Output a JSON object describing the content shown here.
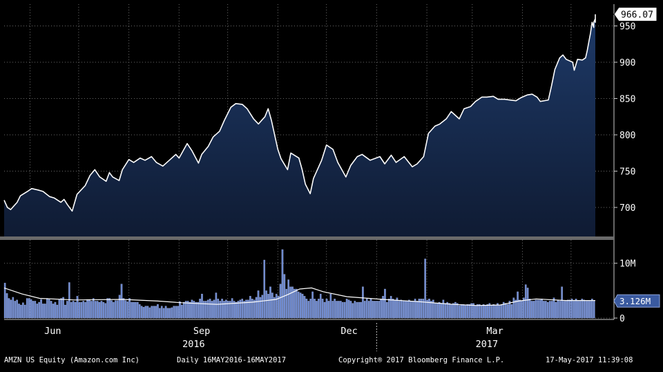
{
  "chart_data": [
    {
      "type": "area",
      "name": "price",
      "ylim": [
        660,
        980
      ],
      "y_ticks": [
        700,
        750,
        800,
        850,
        900,
        950
      ],
      "last_value_label": "966.07",
      "points": [
        [
          "2016-05-16",
          710
        ],
        [
          "2016-05-18",
          700
        ],
        [
          "2016-05-20",
          697
        ],
        [
          "2016-05-24",
          707
        ],
        [
          "2016-05-26",
          716
        ],
        [
          "2016-05-31",
          723
        ],
        [
          "2016-06-02",
          726
        ],
        [
          "2016-06-06",
          724
        ],
        [
          "2016-06-09",
          722
        ],
        [
          "2016-06-13",
          715
        ],
        [
          "2016-06-16",
          713
        ],
        [
          "2016-06-20",
          707
        ],
        [
          "2016-06-22",
          711
        ],
        [
          "2016-06-24",
          704
        ],
        [
          "2016-06-27",
          695
        ],
        [
          "2016-06-30",
          718
        ],
        [
          "2016-07-05",
          730
        ],
        [
          "2016-07-08",
          744
        ],
        [
          "2016-07-11",
          752
        ],
        [
          "2016-07-14",
          742
        ],
        [
          "2016-07-18",
          736
        ],
        [
          "2016-07-20",
          748
        ],
        [
          "2016-07-22",
          742
        ],
        [
          "2016-07-26",
          737
        ],
        [
          "2016-07-28",
          752
        ],
        [
          "2016-08-01",
          766
        ],
        [
          "2016-08-04",
          762
        ],
        [
          "2016-08-08",
          768
        ],
        [
          "2016-08-11",
          765
        ],
        [
          "2016-08-15",
          770
        ],
        [
          "2016-08-18",
          762
        ],
        [
          "2016-08-22",
          757
        ],
        [
          "2016-08-25",
          763
        ],
        [
          "2016-08-30",
          773
        ],
        [
          "2016-09-01",
          768
        ],
        [
          "2016-09-06",
          788
        ],
        [
          "2016-09-09",
          778
        ],
        [
          "2016-09-13",
          761
        ],
        [
          "2016-09-15",
          773
        ],
        [
          "2016-09-19",
          784
        ],
        [
          "2016-09-22",
          797
        ],
        [
          "2016-09-26",
          805
        ],
        [
          "2016-09-29",
          820
        ],
        [
          "2016-10-03",
          838
        ],
        [
          "2016-10-06",
          843
        ],
        [
          "2016-10-10",
          842
        ],
        [
          "2016-10-13",
          836
        ],
        [
          "2016-10-17",
          822
        ],
        [
          "2016-10-20",
          815
        ],
        [
          "2016-10-24",
          825
        ],
        [
          "2016-10-26",
          836
        ],
        [
          "2016-10-28",
          820
        ],
        [
          "2016-11-01",
          780
        ],
        [
          "2016-11-03",
          767
        ],
        [
          "2016-11-07",
          752
        ],
        [
          "2016-11-09",
          775
        ],
        [
          "2016-11-14",
          768
        ],
        [
          "2016-11-16",
          752
        ],
        [
          "2016-11-18",
          732
        ],
        [
          "2016-11-21",
          719
        ],
        [
          "2016-11-23",
          740
        ],
        [
          "2016-11-28",
          765
        ],
        [
          "2016-12-01",
          786
        ],
        [
          "2016-12-05",
          780
        ],
        [
          "2016-12-08",
          762
        ],
        [
          "2016-12-13",
          742
        ],
        [
          "2016-12-16",
          758
        ],
        [
          "2016-12-20",
          770
        ],
        [
          "2016-12-23",
          773
        ],
        [
          "2016-12-28",
          765
        ],
        [
          "2017-01-03",
          770
        ],
        [
          "2017-01-06",
          760
        ],
        [
          "2017-01-10",
          772
        ],
        [
          "2017-01-13",
          762
        ],
        [
          "2017-01-18",
          770
        ],
        [
          "2017-01-23",
          756
        ],
        [
          "2017-01-26",
          760
        ],
        [
          "2017-01-30",
          770
        ],
        [
          "2017-02-02",
          802
        ],
        [
          "2017-02-06",
          812
        ],
        [
          "2017-02-09",
          815
        ],
        [
          "2017-02-13",
          822
        ],
        [
          "2017-02-16",
          832
        ],
        [
          "2017-02-21",
          822
        ],
        [
          "2017-02-24",
          836
        ],
        [
          "2017-02-28",
          839
        ],
        [
          "2017-03-03",
          846
        ],
        [
          "2017-03-07",
          852
        ],
        [
          "2017-03-10",
          852
        ],
        [
          "2017-03-14",
          853
        ],
        [
          "2017-03-17",
          849
        ],
        [
          "2017-03-21",
          849
        ],
        [
          "2017-03-24",
          848
        ],
        [
          "2017-03-28",
          847
        ],
        [
          "2017-03-31",
          851
        ],
        [
          "2017-04-04",
          855
        ],
        [
          "2017-04-07",
          856
        ],
        [
          "2017-04-10",
          852
        ],
        [
          "2017-04-12",
          846
        ],
        [
          "2017-04-17",
          848
        ],
        [
          "2017-04-19",
          868
        ],
        [
          "2017-04-21",
          890
        ],
        [
          "2017-04-24",
          906
        ],
        [
          "2017-04-26",
          910
        ],
        [
          "2017-04-28",
          904
        ],
        [
          "2017-05-02",
          900
        ],
        [
          "2017-05-03",
          889
        ],
        [
          "2017-05-05",
          904
        ],
        [
          "2017-05-08",
          903
        ],
        [
          "2017-05-10",
          906
        ],
        [
          "2017-05-11",
          916
        ],
        [
          "2017-05-12",
          928
        ],
        [
          "2017-05-13",
          940
        ],
        [
          "2017-05-14",
          955
        ],
        [
          "2017-05-15",
          948
        ],
        [
          "2017-05-15",
          955
        ],
        [
          "2017-05-16",
          960
        ],
        [
          "2017-05-16",
          955
        ],
        [
          "2017-05-16",
          966.07
        ]
      ]
    },
    {
      "type": "bar",
      "name": "volume",
      "ylim": [
        0,
        14000000
      ],
      "y_ticks": [
        {
          "value": 10000000,
          "label": "10M"
        },
        {
          "value": 0,
          "label": "0"
        }
      ],
      "last_value_label": "3.126M",
      "volume_values_M": [
        6.4,
        4.5,
        3.6,
        3.3,
        3.8,
        3.1,
        3.3,
        2.6,
        2.4,
        2.8,
        2.4,
        3.6,
        3.6,
        3.4,
        3.1,
        3.1,
        2.6,
        2.9,
        3.4,
        2.6,
        2.6,
        3.6,
        3.4,
        3.1,
        2.6,
        2.9,
        2.4,
        3.4,
        3.6,
        3.8,
        2.4,
        3.1,
        6.5,
        2.9,
        3.1,
        2.9,
        4.0,
        2.9,
        2.9,
        3.1,
        2.9,
        3.4,
        3.4,
        3.1,
        3.6,
        3.1,
        3.1,
        2.9,
        3.1,
        2.9,
        2.7,
        3.6,
        3.6,
        3.2,
        2.9,
        3.2,
        3.2,
        4.2,
        6.2,
        3.6,
        3.2,
        3.0,
        3.6,
        2.9,
        2.9,
        2.9,
        2.9,
        2.5,
        2.2,
        2.0,
        2.2,
        2.2,
        1.9,
        2.2,
        2.2,
        2.2,
        2.5,
        1.8,
        2.2,
        1.8,
        2.2,
        1.8,
        1.8,
        1.9,
        2.2,
        2.2,
        2.2,
        3.0,
        2.4,
        2.9,
        3.1,
        3.1,
        2.9,
        3.3,
        3.1,
        2.9,
        2.9,
        3.5,
        4.4,
        3.1,
        3.1,
        3.3,
        3.5,
        3.1,
        3.3,
        4.6,
        3.5,
        3.1,
        3.5,
        3.1,
        3.3,
        3.1,
        3.1,
        3.6,
        3.1,
        2.9,
        3.1,
        3.3,
        3.5,
        3.1,
        3.3,
        3.3,
        4.0,
        3.5,
        3.3,
        3.8,
        5.0,
        3.8,
        4.2,
        10.6,
        5.0,
        4.4,
        5.7,
        4.6,
        3.8,
        4.4,
        4.0,
        6.2,
        12.5,
        8.0,
        5.3,
        7.0,
        5.7,
        5.7,
        5.3,
        5.3,
        4.8,
        4.6,
        4.4,
        4.0,
        3.5,
        3.1,
        3.5,
        4.8,
        3.5,
        3.1,
        3.5,
        4.4,
        3.5,
        2.9,
        3.5,
        3.1,
        4.4,
        3.1,
        3.5,
        3.1,
        3.1,
        3.1,
        2.9,
        2.9,
        3.5,
        3.3,
        3.1,
        2.7,
        3.1,
        2.9,
        2.9,
        2.9,
        5.7,
        3.1,
        3.5,
        3.1,
        3.5,
        3.1,
        3.1,
        3.1,
        3.1,
        3.5,
        4.0,
        5.3,
        2.9,
        3.5,
        4.0,
        3.5,
        3.3,
        3.7,
        3.1,
        3.3,
        3.1,
        3.1,
        3.1,
        3.3,
        3.1,
        3.1,
        3.5,
        3.1,
        3.5,
        3.5,
        3.5,
        10.8,
        3.3,
        3.5,
        3.1,
        3.3,
        2.7,
        2.7,
        2.9,
        2.7,
        3.3,
        2.7,
        2.9,
        2.7,
        2.5,
        2.7,
        2.9,
        2.7,
        2.3,
        2.5,
        2.5,
        2.3,
        2.5,
        2.5,
        2.7,
        2.7,
        2.3,
        2.5,
        2.5,
        2.3,
        2.5,
        2.3,
        2.5,
        2.7,
        2.3,
        2.5,
        2.3,
        2.7,
        2.3,
        2.5,
        2.9,
        2.7,
        2.5,
        3.1,
        2.5,
        3.7,
        3.3,
        4.8,
        3.3,
        3.1,
        3.7,
        6.1,
        5.5,
        3.5,
        3.1,
        3.1,
        3.3,
        3.3,
        3.3,
        3.5,
        3.1,
        3.1,
        2.9,
        3.1,
        3.1,
        3.7,
        2.9,
        3.3,
        3.1,
        5.7,
        3.1,
        3.1,
        3.3,
        3.3,
        3.5,
        3.1,
        3.5,
        3.1,
        3.1,
        3.5,
        3.3,
        3.1,
        3.1,
        3.1,
        3.5,
        3.1
      ],
      "moving_average_M": [
        [
          0,
          5.5
        ],
        [
          0.03,
          4.4
        ],
        [
          0.06,
          3.6
        ],
        [
          0.12,
          3.3
        ],
        [
          0.2,
          3.4
        ],
        [
          0.26,
          3.1
        ],
        [
          0.3,
          2.8
        ],
        [
          0.36,
          2.5
        ],
        [
          0.42,
          2.9
        ],
        [
          0.46,
          3.4
        ],
        [
          0.48,
          4.3
        ],
        [
          0.5,
          5.3
        ],
        [
          0.52,
          5.5
        ],
        [
          0.54,
          4.8
        ],
        [
          0.58,
          3.9
        ],
        [
          0.64,
          3.4
        ],
        [
          0.7,
          3.0
        ],
        [
          0.76,
          2.5
        ],
        [
          0.8,
          2.3
        ],
        [
          0.84,
          2.4
        ],
        [
          0.87,
          3.1
        ],
        [
          0.9,
          3.5
        ],
        [
          0.95,
          3.2
        ],
        [
          1.0,
          3.2
        ]
      ]
    }
  ],
  "x_axis": {
    "month_labels": [
      "Jun",
      "Sep",
      "Dec",
      "Mar"
    ],
    "year_labels": [
      "2016",
      "2017"
    ]
  },
  "footer": {
    "security": "AMZN US Equity (Amazon.com Inc)",
    "range": "Daily 16MAY2016-16MAY2017",
    "copyright": "Copyright® 2017 Bloomberg Finance L.P.",
    "timestamp": "17-May-2017 11:39:08"
  },
  "colors": {
    "background": "#000000",
    "area_top": "#1e3a68",
    "area_bottom": "#0f1b33",
    "line": "#ffffff",
    "bar": "#6e8ad0",
    "bar_edge": "#aab8e6",
    "grid": "#6a6a6a",
    "separator": "#6a6a6a",
    "text": "#ffffff",
    "volume_box": "#3a5aa0"
  }
}
